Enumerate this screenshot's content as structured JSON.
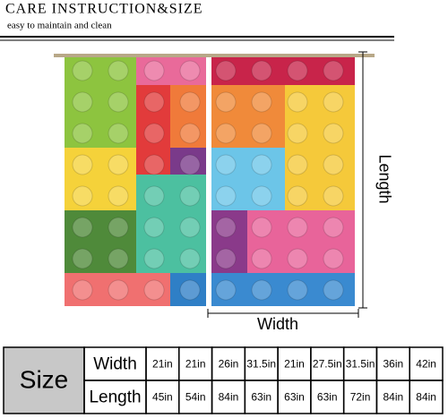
{
  "header": {
    "title": "CARE INSTRUCTION&SIZE",
    "subtitle": "easy to maintain and clean"
  },
  "dimensions": {
    "length_label": "Length",
    "width_label": "Width"
  },
  "table": {
    "size_label": "Size",
    "rows": [
      {
        "label": "Width",
        "values": [
          "21in",
          "21in",
          "26in",
          "31.5in",
          "21in",
          "27.5in",
          "31.5in",
          "36in",
          "42in"
        ]
      },
      {
        "label": "Length",
        "values": [
          "45in",
          "54in",
          "84in",
          "63in",
          "63in",
          "63in",
          "72in",
          "84in",
          "84in"
        ]
      }
    ]
  }
}
